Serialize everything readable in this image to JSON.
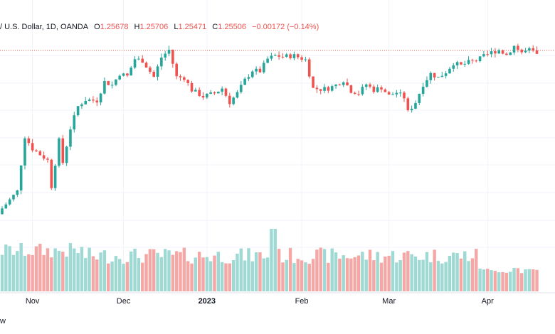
{
  "legend": {
    "pair": "/ U.S. Dollar, 1D, OANDA",
    "open_label": "O",
    "open": "1.25678",
    "high_label": "H",
    "high": "1.25706",
    "low_label": "L",
    "low": "1.25471",
    "close_label": "C",
    "close": "1.25506",
    "change": "−0.00172 (−0.14%)"
  },
  "footer_text": "w",
  "colors": {
    "up": "#26a69a",
    "down": "#ef5350",
    "up_volume": "#9fd9d3",
    "down_volume": "#f5a7a6",
    "grid": "#f0f3fa",
    "price_line": "#ef5350",
    "axis_text": "#131722"
  },
  "chart_data": {
    "type": "candlestick",
    "title": "",
    "symbol": "/ U.S. Dollar",
    "interval": "1D",
    "source": "OANDA",
    "x_tick_labels": [
      "Nov",
      "Dec",
      "2023",
      "Feb",
      "Mar",
      "Apr"
    ],
    "y_axis_visible": false,
    "grid": true,
    "price_line": 1.25506,
    "candle_count": 142,
    "ylim": [
      1.035,
      1.27
    ],
    "volume_max": 100
  }
}
